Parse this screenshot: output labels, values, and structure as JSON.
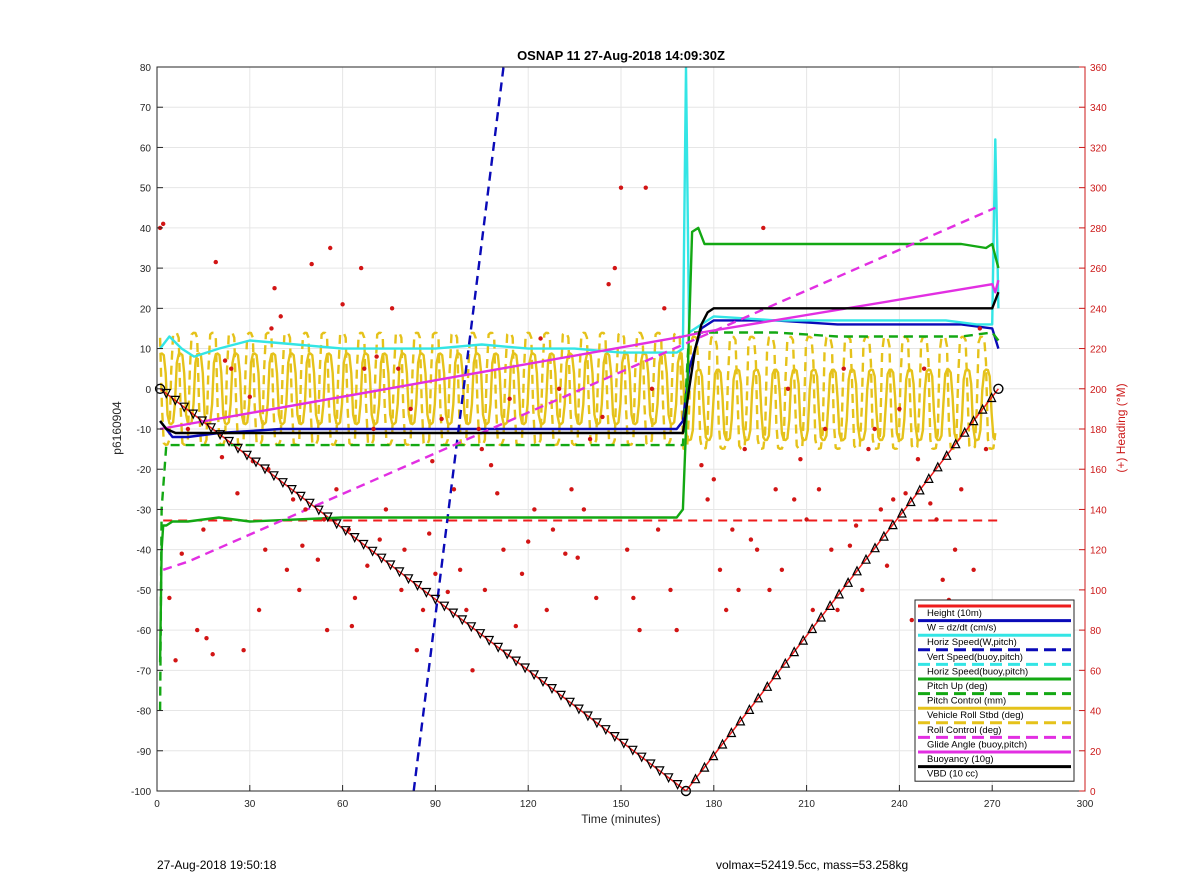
{
  "footer": {
    "left": "27-Aug-2018 19:50:18",
    "right": "volmax=52419.5cc, mass=53.258kg"
  },
  "colors": {
    "height": "#ee1c1c",
    "w": "#0a0ab8",
    "horiz_speed": "#33e5e5",
    "pitch": "#13a813",
    "roll": "#e5c21a",
    "glide": "#e22fe2",
    "vbd": "#000000",
    "scatter": "#d21515",
    "right_axis": "#cc1a1a"
  },
  "chart_data": {
    "type": "line",
    "title": "OSNAP 11 27-Aug-2018 14:09:30Z",
    "xlabel": "Time (minutes)",
    "ylabel": "p6160904",
    "ylabel_right": "(+) Heading (°M)",
    "xlim": [
      0,
      300
    ],
    "ylim": [
      -100,
      80
    ],
    "ylim_right": [
      0,
      360
    ],
    "xticks": [
      0,
      30,
      60,
      90,
      120,
      150,
      180,
      210,
      240,
      270,
      300
    ],
    "yticks": [
      -100,
      -90,
      -80,
      -70,
      -60,
      -50,
      -40,
      -30,
      -20,
      -10,
      0,
      10,
      20,
      30,
      40,
      50,
      60,
      70,
      80
    ],
    "yticks_right": [
      0,
      20,
      40,
      60,
      80,
      100,
      120,
      140,
      160,
      180,
      200,
      220,
      240,
      260,
      280,
      300,
      320,
      340,
      360
    ],
    "grid": true,
    "legend_position": "bottom-right",
    "series": [
      {
        "name": "Height (10m)",
        "color": "#ee1c1c",
        "style": "solid",
        "x": [
          1,
          171,
          272
        ],
        "y": [
          0,
          -100,
          0
        ]
      },
      {
        "name": "W = dz/dt (cm/s)",
        "color": "#0a0ab8",
        "style": "solid",
        "x": [
          1,
          5,
          10,
          20,
          40,
          60,
          80,
          100,
          120,
          140,
          160,
          168,
          170,
          172,
          176,
          180,
          200,
          220,
          240,
          260,
          270,
          272
        ],
        "y": [
          -8,
          -12,
          -12,
          -11,
          -10,
          -10,
          -10,
          -10,
          -10,
          -10,
          -10,
          -10,
          -8,
          5,
          15,
          17,
          17,
          16,
          16,
          16,
          15,
          10
        ]
      },
      {
        "name": "Horiz Speed(W,pitch)",
        "color": "#33e5e5",
        "style": "solid",
        "x": [
          1,
          4,
          8,
          12,
          20,
          30,
          45,
          60,
          75,
          90,
          105,
          120,
          135,
          150,
          160,
          168,
          170,
          171,
          172,
          176,
          180,
          200,
          220,
          240,
          255,
          265,
          270,
          271,
          272
        ],
        "y": [
          10,
          13,
          10,
          8,
          10,
          12,
          11,
          10,
          10,
          10,
          11,
          10,
          10,
          9,
          9,
          9,
          10,
          80,
          14,
          16,
          18,
          17,
          17,
          17,
          17,
          16,
          16,
          62,
          20
        ]
      },
      {
        "name": "Vert Speed(buoy,pitch)",
        "color": "#0a0ab8",
        "style": "dashed",
        "x": [
          83,
          112
        ],
        "y": [
          -100,
          80
        ]
      },
      {
        "name": "Horiz Speed(buoy,pitch)",
        "color": "#33e5e5",
        "style": "dashed",
        "x": [],
        "y": []
      },
      {
        "name": "Pitch Up (deg)",
        "color": "#13a813",
        "style": "solid",
        "x": [
          1,
          1.5,
          2,
          3,
          5,
          10,
          20,
          30,
          60,
          90,
          120,
          150,
          168,
          170,
          171,
          173,
          175,
          177,
          180,
          200,
          220,
          240,
          260,
          268,
          270,
          272
        ],
        "y": [
          -68,
          -40,
          -34,
          -34,
          -33,
          -33,
          -32,
          -33,
          -32,
          -32,
          -32,
          -32,
          -32,
          -30,
          -10,
          39,
          40,
          36,
          36,
          36,
          36,
          36,
          36,
          35,
          36,
          30
        ]
      },
      {
        "name": "Pitch Control (mm)",
        "color": "#13a813",
        "style": "dashed",
        "x": [
          1,
          1.5,
          3,
          10,
          50,
          100,
          150,
          168,
          170,
          172,
          180,
          200,
          220,
          240,
          260,
          270,
          272
        ],
        "y": [
          -80,
          -30,
          -14,
          -14,
          -14,
          -14,
          -14,
          -14,
          -14,
          14,
          14,
          14,
          13,
          13,
          13,
          14,
          12
        ]
      },
      {
        "name": "Vehicle Roll Stbd (deg)",
        "color": "#e5c21a",
        "style": "solid",
        "x": [],
        "y": []
      },
      {
        "name": "Roll Control (deg)",
        "color": "#e5c21a",
        "style": "dashed",
        "x": [],
        "y": []
      },
      {
        "name": "Glide Angle (buoy,pitch)",
        "color": "#e22fe2",
        "style": "dashed",
        "x": [
          2,
          10,
          271
        ],
        "y": [
          -45,
          -43,
          45
        ]
      },
      {
        "name": "Buoyancy (10g)",
        "color": "#e22fe2",
        "style": "solid",
        "x": [
          1,
          170,
          176,
          270,
          271,
          272
        ],
        "y": [
          -10,
          13,
          14,
          26,
          24,
          27
        ]
      },
      {
        "name": "VBD (10 cc)",
        "color": "#000000",
        "style": "solid",
        "x": [
          1,
          3,
          6,
          168,
          170,
          172,
          174,
          176,
          178,
          180,
          190,
          210,
          230,
          250,
          265,
          270,
          271,
          272
        ],
        "y": [
          -8,
          -10,
          -11,
          -11,
          -11,
          0,
          10,
          16,
          19,
          20,
          20,
          20,
          20,
          20,
          20,
          20,
          22,
          24
        ]
      }
    ],
    "heading_scatter": {
      "axis": "right",
      "x": [
        1,
        2,
        4,
        6,
        8,
        10,
        13,
        15,
        16,
        18,
        19,
        21,
        22,
        24,
        26,
        28,
        30,
        31,
        33,
        35,
        36,
        37,
        38,
        40,
        42,
        44,
        46,
        47,
        48,
        50,
        52,
        54,
        55,
        56,
        58,
        60,
        62,
        63,
        64,
        66,
        67,
        68,
        70,
        71,
        72,
        74,
        76,
        78,
        79,
        80,
        82,
        84,
        86,
        88,
        89,
        90,
        92,
        94,
        96,
        98,
        100,
        102,
        104,
        105,
        106,
        108,
        110,
        112,
        114,
        116,
        118,
        120,
        122,
        124,
        126,
        128,
        130,
        132,
        134,
        136,
        138,
        140,
        142,
        144,
        146,
        148,
        150,
        152,
        154,
        156,
        158,
        160,
        162,
        164,
        166,
        168,
        176,
        178,
        180,
        182,
        184,
        186,
        188,
        190,
        192,
        194,
        196,
        198,
        200,
        202,
        204,
        206,
        208,
        210,
        212,
        214,
        216,
        218,
        220,
        222,
        224,
        226,
        228,
        230,
        232,
        234,
        236,
        238,
        240,
        242,
        244,
        246,
        248,
        250,
        252,
        254,
        256,
        258,
        260,
        262,
        264,
        266,
        268,
        270
      ],
      "y": [
        280,
        282,
        96,
        65,
        118,
        180,
        80,
        130,
        76,
        68,
        263,
        166,
        214,
        210,
        148,
        70,
        196,
        164,
        90,
        120,
        160,
        230,
        250,
        236,
        110,
        145,
        100,
        122,
        140,
        262,
        115,
        135,
        80,
        270,
        150,
        242,
        130,
        82,
        96,
        260,
        210,
        112,
        180,
        216,
        125,
        140,
        240,
        210,
        100,
        120,
        190,
        70,
        90,
        128,
        164,
        108,
        185,
        99,
        150,
        110,
        90,
        60,
        180,
        170,
        100,
        162,
        148,
        120,
        195,
        82,
        108,
        124,
        140,
        225,
        90,
        130,
        200,
        118,
        150,
        116,
        140,
        175,
        96,
        186,
        252,
        260,
        300,
        120,
        96,
        80,
        300,
        200,
        130,
        240,
        100,
        80,
        162,
        145,
        155,
        110,
        90,
        130,
        100,
        170,
        125,
        120,
        280,
        100,
        150,
        110,
        200,
        145,
        165,
        135,
        90,
        150,
        180,
        120,
        90,
        210,
        122,
        132,
        100,
        170,
        180,
        140,
        112,
        145,
        190,
        148,
        85,
        165,
        210,
        143,
        135,
        105,
        95,
        120,
        150,
        80,
        110,
        230,
        170,
        62
      ]
    }
  }
}
